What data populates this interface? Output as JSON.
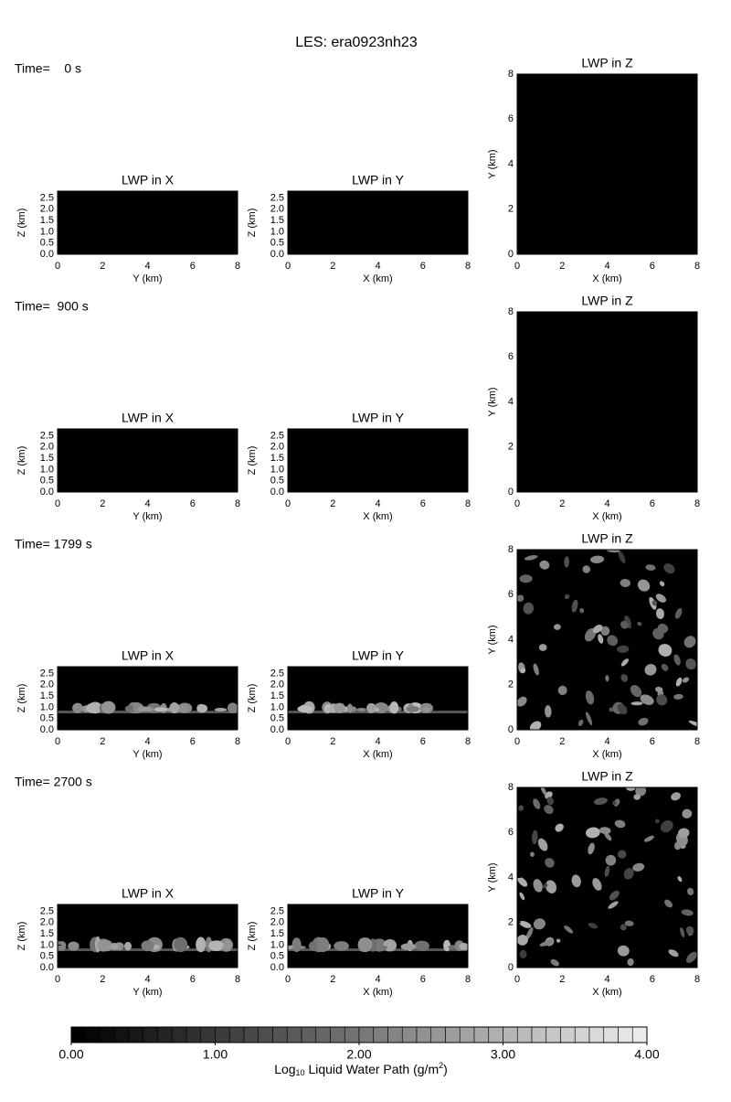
{
  "chart_data": {
    "type": "heatmap-grid",
    "title": "LES: era0923nh23",
    "rows": [
      {
        "time": "Time=    0 s",
        "panels": [
          {
            "type": "heatmap",
            "title": "LWP in X",
            "xlabel": "Y (km)",
            "ylabel": "Z (km)",
            "xlim": [
              0,
              8
            ],
            "ylim": [
              0,
              2.8
            ],
            "xticks": [
              0,
              2,
              4,
              6,
              8
            ],
            "yticks": [
              {
                "value": 0,
                "label": "0.0"
              },
              {
                "value": 0.5,
                "label": "0.5"
              },
              {
                "value": 1,
                "label": "1.0"
              },
              {
                "value": 1.5,
                "label": "1.5"
              },
              {
                "value": 2,
                "label": "2.0"
              },
              {
                "value": 2.5,
                "label": "2.5"
              }
            ]
          },
          {
            "type": "heatmap",
            "title": "LWP in Y",
            "xlabel": "X (km)",
            "ylabel": "Z (km)",
            "xlim": [
              0,
              8
            ],
            "ylim": [
              0,
              2.8
            ],
            "xticks": [
              0,
              2,
              4,
              6,
              8
            ],
            "yticks": [
              {
                "value": 0,
                "label": "0.0"
              },
              {
                "value": 0.5,
                "label": "0.5"
              },
              {
                "value": 1,
                "label": "1.0"
              },
              {
                "value": 1.5,
                "label": "1.5"
              },
              {
                "value": 2,
                "label": "2.0"
              },
              {
                "value": 2.5,
                "label": "2.5"
              }
            ]
          },
          {
            "type": "heatmap",
            "title": "LWP in Z",
            "xlabel": "X (km)",
            "ylabel": "Y (km)",
            "xlim": [
              0,
              8
            ],
            "ylim": [
              0,
              8
            ],
            "xticks": [
              0,
              2,
              4,
              6,
              8
            ],
            "yticks": [
              0,
              2,
              4,
              6,
              8
            ]
          }
        ]
      },
      {
        "time": "Time=  900 s",
        "panels": [
          {
            "type": "heatmap",
            "title": "LWP in X",
            "xlabel": "Y (km)",
            "ylabel": "Z (km)",
            "xlim": [
              0,
              8
            ],
            "ylim": [
              0,
              2.8
            ],
            "xticks": [
              0,
              2,
              4,
              6,
              8
            ],
            "yticks": [
              {
                "value": 0,
                "label": "0.0"
              },
              {
                "value": 0.5,
                "label": "0.5"
              },
              {
                "value": 1,
                "label": "1.0"
              },
              {
                "value": 1.5,
                "label": "1.5"
              },
              {
                "value": 2,
                "label": "2.0"
              },
              {
                "value": 2.5,
                "label": "2.5"
              }
            ]
          },
          {
            "type": "heatmap",
            "title": "LWP in Y",
            "xlabel": "X (km)",
            "ylabel": "Z (km)",
            "xlim": [
              0,
              8
            ],
            "ylim": [
              0,
              2.8
            ],
            "xticks": [
              0,
              2,
              4,
              6,
              8
            ],
            "yticks": [
              {
                "value": 0,
                "label": "0.0"
              },
              {
                "value": 0.5,
                "label": "0.5"
              },
              {
                "value": 1,
                "label": "1.0"
              },
              {
                "value": 1.5,
                "label": "1.5"
              },
              {
                "value": 2,
                "label": "2.0"
              },
              {
                "value": 2.5,
                "label": "2.5"
              }
            ]
          },
          {
            "type": "heatmap",
            "title": "LWP in Z",
            "xlabel": "X (km)",
            "ylabel": "Y (km)",
            "xlim": [
              0,
              8
            ],
            "ylim": [
              0,
              8
            ],
            "xticks": [
              0,
              2,
              4,
              6,
              8
            ],
            "yticks": [
              0,
              2,
              4,
              6,
              8
            ]
          }
        ]
      },
      {
        "time": "Time= 1799 s",
        "panels": [
          {
            "type": "heatmap",
            "title": "LWP in X",
            "xlabel": "Y (km)",
            "ylabel": "Z (km)",
            "xlim": [
              0,
              8
            ],
            "ylim": [
              0,
              2.8
            ],
            "xticks": [
              0,
              2,
              4,
              6,
              8
            ],
            "yticks": [
              {
                "value": 0,
                "label": "0.0"
              },
              {
                "value": 0.5,
                "label": "0.5"
              },
              {
                "value": 1,
                "label": "1.0"
              },
              {
                "value": 1.5,
                "label": "1.5"
              },
              {
                "value": 2,
                "label": "2.0"
              },
              {
                "value": 2.5,
                "label": "2.5"
              }
            ]
          },
          {
            "type": "heatmap",
            "title": "LWP in Y",
            "xlabel": "X (km)",
            "ylabel": "Z (km)",
            "xlim": [
              0,
              8
            ],
            "ylim": [
              0,
              2.8
            ],
            "xticks": [
              0,
              2,
              4,
              6,
              8
            ],
            "yticks": [
              {
                "value": 0,
                "label": "0.0"
              },
              {
                "value": 0.5,
                "label": "0.5"
              },
              {
                "value": 1,
                "label": "1.0"
              },
              {
                "value": 1.5,
                "label": "1.5"
              },
              {
                "value": 2,
                "label": "2.0"
              },
              {
                "value": 2.5,
                "label": "2.5"
              }
            ]
          },
          {
            "type": "heatmap",
            "title": "LWP in Z",
            "xlabel": "X (km)",
            "ylabel": "Y (km)",
            "xlim": [
              0,
              8
            ],
            "ylim": [
              0,
              8
            ],
            "xticks": [
              0,
              2,
              4,
              6,
              8
            ],
            "yticks": [
              0,
              2,
              4,
              6,
              8
            ]
          }
        ]
      },
      {
        "time": "Time= 2700 s",
        "panels": [
          {
            "type": "heatmap",
            "title": "LWP in X",
            "xlabel": "Y (km)",
            "ylabel": "Z (km)",
            "xlim": [
              0,
              8
            ],
            "ylim": [
              0,
              2.8
            ],
            "xticks": [
              0,
              2,
              4,
              6,
              8
            ],
            "yticks": [
              {
                "value": 0,
                "label": "0.0"
              },
              {
                "value": 0.5,
                "label": "0.5"
              },
              {
                "value": 1,
                "label": "1.0"
              },
              {
                "value": 1.5,
                "label": "1.5"
              },
              {
                "value": 2,
                "label": "2.0"
              },
              {
                "value": 2.5,
                "label": "2.5"
              }
            ]
          },
          {
            "type": "heatmap",
            "title": "LWP in Y",
            "xlabel": "X (km)",
            "ylabel": "Z (km)",
            "xlim": [
              0,
              8
            ],
            "ylim": [
              0,
              2.8
            ],
            "xticks": [
              0,
              2,
              4,
              6,
              8
            ],
            "yticks": [
              {
                "value": 0,
                "label": "0.0"
              },
              {
                "value": 0.5,
                "label": "0.5"
              },
              {
                "value": 1,
                "label": "1.0"
              },
              {
                "value": 1.5,
                "label": "1.5"
              },
              {
                "value": 2,
                "label": "2.0"
              },
              {
                "value": 2.5,
                "label": "2.5"
              }
            ]
          },
          {
            "type": "heatmap",
            "title": "LWP in Z",
            "xlabel": "X (km)",
            "ylabel": "Y (km)",
            "xlim": [
              0,
              8
            ],
            "ylim": [
              0,
              8
            ],
            "xticks": [
              0,
              2,
              4,
              6,
              8
            ],
            "yticks": [
              0,
              2,
              4,
              6,
              8
            ]
          }
        ]
      }
    ],
    "colorbar": {
      "label": [
        "Log",
        "10",
        " Liquid Water Path (g/m",
        "2",
        ")"
      ],
      "lim": [
        0,
        4
      ],
      "levels": 40,
      "ticks": [
        {
          "value": 0,
          "label": "0.00"
        },
        {
          "value": 1,
          "label": "1.00"
        },
        {
          "value": 2,
          "label": "2.00"
        },
        {
          "value": 3,
          "label": "3.00"
        },
        {
          "value": 4,
          "label": "4.00"
        }
      ]
    }
  }
}
